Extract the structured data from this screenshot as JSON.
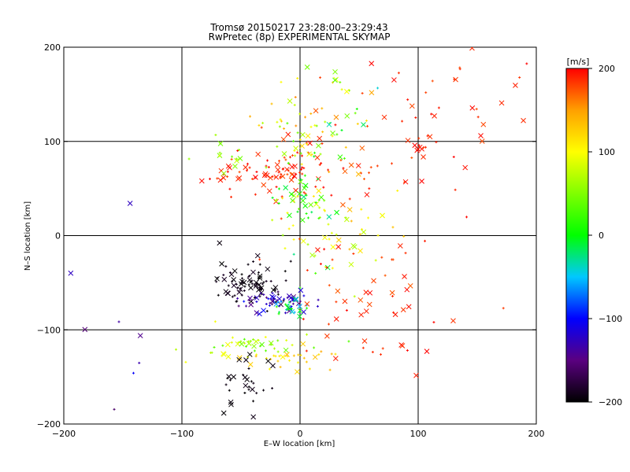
{
  "chart_data": {
    "type": "scatter",
    "title": "Tromsø 20150217 23:28:00–23:29:43",
    "subtitle": "RwPretec (8p) EXPERIMENTAL SKYMAP",
    "xlabel": "E–W location [km]",
    "ylabel": "N–S location [km]",
    "xlim": [
      -200,
      200
    ],
    "ylim": [
      -200,
      200
    ],
    "xticks": [
      -200,
      -100,
      0,
      100,
      200
    ],
    "yticks": [
      -200,
      -100,
      0,
      100,
      200
    ],
    "grid": true,
    "marker_types": [
      "plus",
      "cross"
    ],
    "colorbar": {
      "label": "[m/s]",
      "min": -200,
      "max": 200,
      "ticks": [
        -200,
        -100,
        0,
        100,
        200
      ],
      "colormap": "black-purple-blue-cyan-green-yellow-orange-red",
      "stops": [
        {
          "v": -200,
          "color": "#000000"
        },
        {
          "v": -150,
          "color": "#5a0080"
        },
        {
          "v": -100,
          "color": "#0000ff"
        },
        {
          "v": -50,
          "color": "#00c8ff"
        },
        {
          "v": 0,
          "color": "#00ff00"
        },
        {
          "v": 100,
          "color": "#ffff00"
        },
        {
          "v": 150,
          "color": "#ffa000"
        },
        {
          "v": 200,
          "color": "#ff0000"
        }
      ]
    },
    "clusters": [
      {
        "name": "NE sparse",
        "cx": 130,
        "cy": 150,
        "sx": 40,
        "sy": 35,
        "n": 30,
        "vmin": 175,
        "vmax": 200
      },
      {
        "name": "N red",
        "cx": 20,
        "cy": 70,
        "sx": 45,
        "sy": 35,
        "n": 70,
        "vmin": 170,
        "vmax": 200
      },
      {
        "name": "N mix",
        "cx": 0,
        "cy": 115,
        "sx": 25,
        "sy": 25,
        "n": 55,
        "vmin": 30,
        "vmax": 160
      },
      {
        "name": "N top",
        "cx": 45,
        "cy": 140,
        "sx": 15,
        "sy": 20,
        "n": 12,
        "vmin": -80,
        "vmax": 120
      },
      {
        "name": "NW red band",
        "cx": -30,
        "cy": 68,
        "sx": 25,
        "sy": 8,
        "n": 60,
        "vmin": 175,
        "vmax": 200
      },
      {
        "name": "NW green",
        "cx": -60,
        "cy": 88,
        "sx": 12,
        "sy": 8,
        "n": 14,
        "vmin": 40,
        "vmax": 90
      },
      {
        "name": "center column",
        "cx": 5,
        "cy": 30,
        "sx": 15,
        "sy": 35,
        "n": 70,
        "vmin": -30,
        "vmax": 120
      },
      {
        "name": "center right",
        "cx": 50,
        "cy": 0,
        "sx": 25,
        "sy": 20,
        "n": 30,
        "vmin": 60,
        "vmax": 140
      },
      {
        "name": "black arc",
        "cx": -45,
        "cy": -50,
        "sx": 15,
        "sy": 12,
        "n": 85,
        "vmin": -200,
        "vmax": -185
      },
      {
        "name": "purple blue arc",
        "cx": -22,
        "cy": -70,
        "sx": 15,
        "sy": 6,
        "n": 55,
        "vmin": -170,
        "vmax": -95
      },
      {
        "name": "arc cyan tail",
        "cx": -8,
        "cy": -75,
        "sx": 8,
        "sy": 5,
        "n": 25,
        "vmin": -70,
        "vmax": 30
      },
      {
        "name": "S green band",
        "cx": -40,
        "cy": -118,
        "sx": 25,
        "sy": 8,
        "n": 45,
        "vmin": 30,
        "vmax": 100
      },
      {
        "name": "S yellow band",
        "cx": -5,
        "cy": -130,
        "sx": 18,
        "sy": 6,
        "n": 30,
        "vmin": 100,
        "vmax": 150
      },
      {
        "name": "S black",
        "cx": -42,
        "cy": -155,
        "sx": 12,
        "sy": 14,
        "n": 30,
        "vmin": -200,
        "vmax": -190
      },
      {
        "name": "SE red",
        "cx": 70,
        "cy": -100,
        "sx": 30,
        "sy": 40,
        "n": 35,
        "vmin": 175,
        "vmax": 200
      },
      {
        "name": "E sparse red",
        "cx": 60,
        "cy": -55,
        "sx": 30,
        "sy": 25,
        "n": 22,
        "vmin": 170,
        "vmax": 200
      },
      {
        "name": "E red near 100",
        "cx": 105,
        "cy": 98,
        "sx": 5,
        "sy": 6,
        "n": 12,
        "vmin": 180,
        "vmax": 200
      },
      {
        "name": "far W",
        "cx": -160,
        "cy": -80,
        "sx": 30,
        "sy": 80,
        "n": 10,
        "vmin": -160,
        "vmax": -80
      }
    ]
  }
}
